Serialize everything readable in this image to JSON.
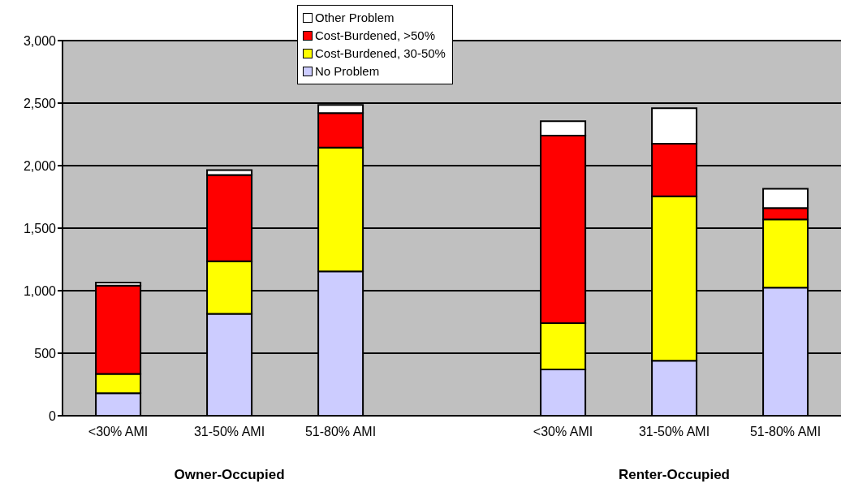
{
  "chart_data": {
    "type": "bar",
    "stacked": true,
    "categories": [
      "<30% AMI",
      "31-50% AMI",
      "51-80% AMI",
      null,
      "<30% AMI",
      "31-50% AMI",
      "51-80% AMI"
    ],
    "series": [
      {
        "name": "No Problem",
        "color": "#ccccff",
        "values": [
          180,
          815,
          1155,
          null,
          370,
          440,
          1025
        ]
      },
      {
        "name": "Cost-Burdened, 30-50%",
        "color": "#ffff00",
        "values": [
          155,
          420,
          990,
          null,
          370,
          1315,
          545
        ]
      },
      {
        "name": "Cost-Burdened, >50%",
        "color": "#ff0000",
        "values": [
          705,
          690,
          275,
          null,
          1500,
          420,
          90
        ]
      },
      {
        "name": "Other Problem",
        "color": "#ffffff",
        "values": [
          25,
          40,
          65,
          null,
          115,
          285,
          155
        ]
      }
    ],
    "ylim": [
      0,
      3000
    ],
    "yticks": [
      0,
      500,
      {
        "value": 1000,
        "label": "1,000"
      },
      {
        "value": 1500,
        "label": "1,500"
      },
      {
        "value": 2000,
        "label": "2,000"
      },
      {
        "value": 2500,
        "label": "2,500"
      },
      {
        "value": 3000,
        "label": "3,000"
      }
    ],
    "grid": "y",
    "legend": "top",
    "annotations": [
      "Owner-Occupied",
      "Renter-Occupied"
    ]
  }
}
